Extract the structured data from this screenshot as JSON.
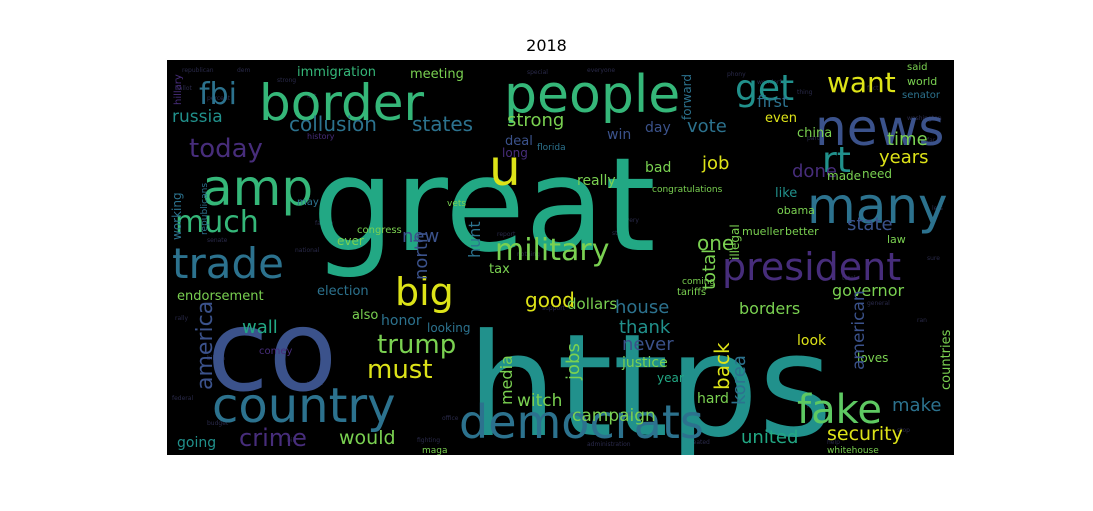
{
  "title": "2018",
  "palette": {
    "yellow": "#dde318",
    "lime": "#7ad151",
    "green": "#35b779",
    "teal": "#22a884",
    "cyan": "#21918c",
    "blue": "#2c728e",
    "indigo": "#3b528b",
    "violet": "#472d7b",
    "purple": "#440154",
    "lightgreen": "#5ec962"
  },
  "words": [
    {
      "text": "great",
      "color": "teal"
    },
    {
      "text": "https",
      "color": "cyan"
    },
    {
      "text": "co",
      "color": "indigo"
    },
    {
      "text": "people",
      "color": "green"
    },
    {
      "text": "border",
      "color": "green"
    },
    {
      "text": "news",
      "color": "indigo"
    },
    {
      "text": "amp",
      "color": "green"
    },
    {
      "text": "country",
      "color": "blue"
    },
    {
      "text": "democrats",
      "color": "blue"
    },
    {
      "text": "many",
      "color": "blue"
    },
    {
      "text": "president",
      "color": "violet"
    },
    {
      "text": "trade",
      "color": "blue"
    },
    {
      "text": "fake",
      "color": "lightgreen"
    },
    {
      "text": "big",
      "color": "yellow"
    },
    {
      "text": "rt",
      "color": "cyan"
    },
    {
      "text": "get",
      "color": "cyan"
    },
    {
      "text": "u",
      "color": "yellow"
    },
    {
      "text": "military",
      "color": "lime"
    },
    {
      "text": "much",
      "color": "green"
    },
    {
      "text": "want",
      "color": "yellow"
    },
    {
      "text": "fbi",
      "color": "blue"
    },
    {
      "text": "today",
      "color": "violet"
    },
    {
      "text": "russia",
      "color": "cyan"
    },
    {
      "text": "collusion",
      "color": "blue"
    },
    {
      "text": "states",
      "color": "blue"
    },
    {
      "text": "strong",
      "color": "lime"
    },
    {
      "text": "america",
      "color": "indigo"
    },
    {
      "text": "trump",
      "color": "lime"
    },
    {
      "text": "must",
      "color": "yellow"
    },
    {
      "text": "crime",
      "color": "violet"
    },
    {
      "text": "would",
      "color": "lime"
    },
    {
      "text": "security",
      "color": "yellow"
    },
    {
      "text": "united",
      "color": "teal"
    },
    {
      "text": "make",
      "color": "blue"
    },
    {
      "text": "years",
      "color": "yellow"
    },
    {
      "text": "time",
      "color": "lime"
    },
    {
      "text": "state",
      "color": "indigo"
    },
    {
      "text": "job",
      "color": "yellow"
    },
    {
      "text": "done",
      "color": "violet"
    },
    {
      "text": "vote",
      "color": "blue"
    },
    {
      "text": "first",
      "color": "blue"
    },
    {
      "text": "even",
      "color": "yellow"
    },
    {
      "text": "north",
      "color": "indigo"
    },
    {
      "text": "hunt",
      "color": "blue"
    },
    {
      "text": "new",
      "color": "indigo"
    },
    {
      "text": "one",
      "color": "lime"
    },
    {
      "text": "total",
      "color": "lime"
    },
    {
      "text": "good",
      "color": "yellow"
    },
    {
      "text": "house",
      "color": "blue"
    },
    {
      "text": "borders",
      "color": "lime"
    },
    {
      "text": "thank",
      "color": "cyan"
    },
    {
      "text": "never",
      "color": "indigo"
    },
    {
      "text": "back",
      "color": "yellow"
    },
    {
      "text": "korea",
      "color": "blue"
    },
    {
      "text": "american",
      "color": "indigo"
    },
    {
      "text": "media",
      "color": "lime"
    },
    {
      "text": "jobs",
      "color": "lime"
    },
    {
      "text": "witch",
      "color": "lime"
    },
    {
      "text": "campaign",
      "color": "lime"
    },
    {
      "text": "wall",
      "color": "teal"
    },
    {
      "text": "endorsement",
      "color": "lime"
    },
    {
      "text": "dollars",
      "color": "lime"
    },
    {
      "text": "governor",
      "color": "lime"
    },
    {
      "text": "justice",
      "color": "lime"
    },
    {
      "text": "honor",
      "color": "blue"
    },
    {
      "text": "immigration",
      "color": "green"
    },
    {
      "text": "meeting",
      "color": "lime"
    },
    {
      "text": "deal",
      "color": "indigo"
    },
    {
      "text": "win",
      "color": "indigo"
    },
    {
      "text": "day",
      "color": "indigo"
    },
    {
      "text": "china",
      "color": "lime"
    },
    {
      "text": "really",
      "color": "lime"
    },
    {
      "text": "election",
      "color": "blue"
    },
    {
      "text": "tax",
      "color": "lime"
    },
    {
      "text": "also",
      "color": "lime"
    },
    {
      "text": "looking",
      "color": "blue"
    },
    {
      "text": "going",
      "color": "cyan"
    },
    {
      "text": "hard",
      "color": "lime"
    },
    {
      "text": "year",
      "color": "teal"
    },
    {
      "text": "look",
      "color": "yellow"
    },
    {
      "text": "countries",
      "color": "lime"
    },
    {
      "text": "loves",
      "color": "lime"
    },
    {
      "text": "like",
      "color": "cyan"
    },
    {
      "text": "obama",
      "color": "lime"
    },
    {
      "text": "need",
      "color": "lime"
    },
    {
      "text": "made",
      "color": "lime"
    },
    {
      "text": "mueller",
      "color": "lime"
    },
    {
      "text": "better",
      "color": "lime"
    },
    {
      "text": "law",
      "color": "lime"
    },
    {
      "text": "bad",
      "color": "lime"
    },
    {
      "text": "working",
      "color": "blue"
    },
    {
      "text": "republicans",
      "color": "blue"
    },
    {
      "text": "ever",
      "color": "lime"
    },
    {
      "text": "congress",
      "color": "lime"
    },
    {
      "text": "world",
      "color": "lime"
    },
    {
      "text": "said",
      "color": "lime"
    },
    {
      "text": "senator",
      "color": "blue"
    },
    {
      "text": "whitehouse",
      "color": "lime"
    },
    {
      "text": "maga",
      "color": "lime"
    },
    {
      "text": "illegal",
      "color": "lime"
    },
    {
      "text": "congratulations",
      "color": "lime"
    },
    {
      "text": "long",
      "color": "violet"
    },
    {
      "text": "florida",
      "color": "blue"
    },
    {
      "text": "forward",
      "color": "blue"
    },
    {
      "text": "tariffs",
      "color": "lime"
    },
    {
      "text": "coming",
      "color": "lime"
    },
    {
      "text": "history",
      "color": "violet"
    },
    {
      "text": "comey",
      "color": "violet"
    },
    {
      "text": "hillary",
      "color": "violet"
    },
    {
      "text": "vets",
      "color": "lime"
    },
    {
      "text": "may",
      "color": "blue"
    }
  ]
}
